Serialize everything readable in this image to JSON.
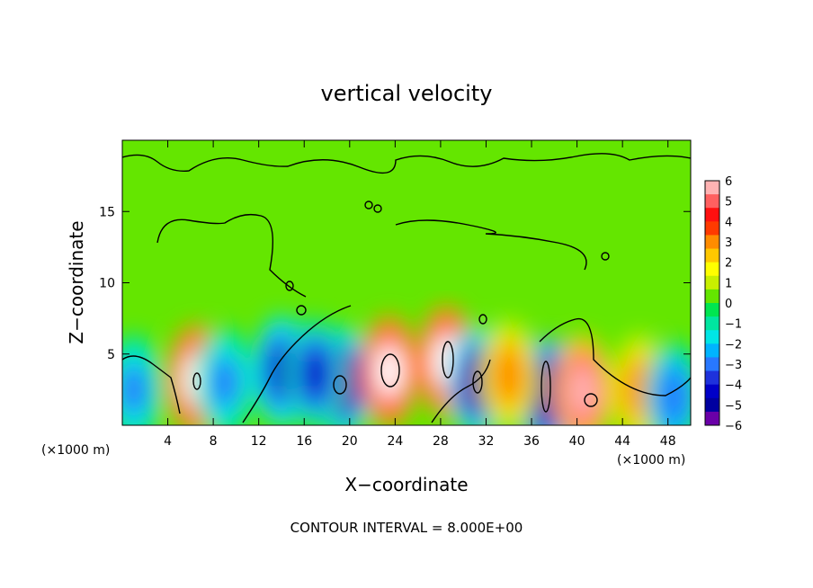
{
  "chart_data": {
    "type": "heatmap",
    "title": "vertical velocity",
    "xlabel": "X−coordinate",
    "ylabel": "Z−coordinate",
    "x_unit_left": "(×1000 m)",
    "x_unit_right": "(×1000 m)",
    "xlim": [
      0,
      50
    ],
    "ylim": [
      0,
      20
    ],
    "xticks": [
      4,
      8,
      12,
      16,
      20,
      24,
      28,
      32,
      36,
      40,
      44,
      48
    ],
    "yticks": [
      5,
      10,
      15
    ],
    "colorbar": {
      "ticks": [
        "6",
        "5",
        "4",
        "3",
        "2",
        "1",
        "0",
        "−1",
        "−2",
        "−3",
        "−4",
        "−5",
        "−6"
      ],
      "colors": [
        "#ffb3b3",
        "#ff6060",
        "#ff1010",
        "#ff3a00",
        "#ff8c00",
        "#ffc800",
        "#ffff00",
        "#c8f000",
        "#64e600",
        "#00e650",
        "#00e6a0",
        "#00e6e6",
        "#00b4ff",
        "#2878ff",
        "#1e32dc",
        "#0000c8",
        "#0000a0",
        "#6a00a8"
      ]
    },
    "background_value": 0.3,
    "features": [
      {
        "x": 6.5,
        "z": 3.2,
        "peak": 8.0
      },
      {
        "x": 19.5,
        "z": 3.0,
        "peak": -6.0
      },
      {
        "x": 23.5,
        "z": 3.8,
        "peak": 8.0
      },
      {
        "x": 28.5,
        "z": 4.5,
        "peak": 8.0
      },
      {
        "x": 31.2,
        "z": 3.0,
        "peak": -6.0
      },
      {
        "x": 37.5,
        "z": 2.2,
        "peak": -7.0
      },
      {
        "x": 40.5,
        "z": 2.4,
        "peak": 7.5
      },
      {
        "x": 45.5,
        "z": 2.5,
        "peak": 3.5
      },
      {
        "x": 14.0,
        "z": 3.8,
        "peak": -5.0
      },
      {
        "x": 17.0,
        "z": 3.6,
        "peak": -4.5
      },
      {
        "x": 48.5,
        "z": 2.0,
        "peak": -3.5
      },
      {
        "x": 34.0,
        "z": 3.5,
        "peak": 3.0
      },
      {
        "x": 9.0,
        "z": 3.0,
        "peak": -3.0
      },
      {
        "x": 1.0,
        "z": 2.5,
        "peak": -3.0
      }
    ],
    "contour_note": "CONTOUR INTERVAL = 8.000E+00"
  }
}
